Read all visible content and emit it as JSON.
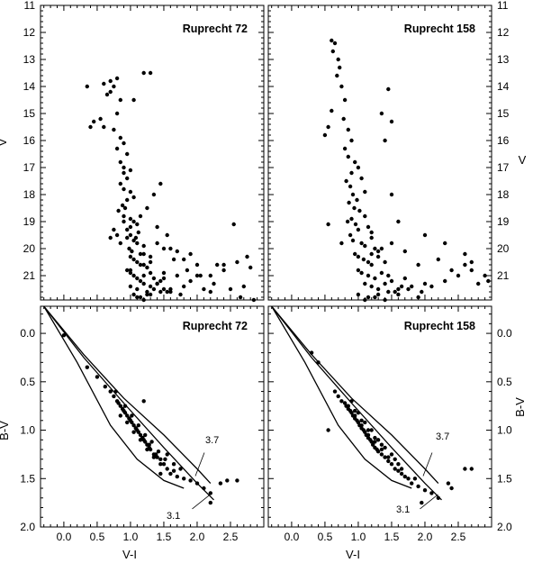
{
  "chart_data": [
    {
      "type": "scatter",
      "title": "Ruprecht 72",
      "xlabel": "",
      "ylabel": "V",
      "xlim": [
        -0.35,
        3.0
      ],
      "ylim": [
        21.9,
        11.0
      ],
      "y_inverted": true,
      "yticks": [
        "11",
        "12",
        "13",
        "14",
        "15",
        "16",
        "17",
        "18",
        "19",
        "20",
        "21"
      ],
      "series": [
        {
          "x": [
            0.35,
            0.4,
            0.45,
            0.6,
            0.65,
            0.7,
            0.75,
            0.7,
            0.8,
            0.85,
            0.8,
            0.75,
            0.85,
            0.9,
            0.8,
            0.95,
            0.85,
            0.9,
            0.9,
            0.95,
            1.0,
            0.85,
            0.9,
            1.0,
            1.05,
            0.95,
            0.88,
            0.92,
            0.82,
            0.9,
            1.0,
            1.05,
            1.0,
            0.95,
            1.1,
            1.15,
            1.0,
            0.95,
            1.05,
            1.1,
            1.2,
            0.98,
            1.02,
            1.08,
            1.12,
            1.0,
            1.05,
            1.1,
            1.15,
            1.2,
            1.25,
            1.3,
            0.95,
            1.0,
            1.05,
            1.1,
            1.15,
            1.2,
            1.3,
            1.35,
            1.4,
            1.0,
            1.1,
            1.2,
            1.25,
            1.3,
            1.45,
            1.5,
            1.6,
            1.05,
            1.15,
            1.25,
            1.35,
            1.4,
            1.5,
            1.55,
            1.7,
            1.8,
            1.1,
            1.2,
            1.3,
            1.45,
            1.6,
            1.75,
            1.9,
            2.0,
            2.1,
            2.2,
            1.0,
            1.15,
            1.3,
            1.5,
            1.65,
            1.85,
            2.05,
            2.25,
            2.4,
            2.6,
            2.8,
            1.2,
            1.4,
            1.6,
            1.8,
            2.0,
            2.2,
            2.4,
            2.7,
            0.8,
            0.85,
            1.25,
            1.35,
            1.45,
            1.55,
            1.7,
            1.9,
            2.3,
            2.5,
            2.65,
            0.75,
            0.7,
            0.9,
            1.4,
            1.5,
            1.2,
            1.3,
            1.05,
            2.55,
            2.75,
            2.85,
            0.6,
            0.55
          ],
          "y": [
            14.0,
            15.5,
            15.3,
            13.9,
            14.3,
            13.8,
            14.0,
            14.2,
            13.7,
            14.5,
            15.0,
            15.6,
            15.9,
            16.1,
            16.3,
            16.5,
            16.8,
            17.0,
            17.2,
            17.4,
            17.1,
            17.6,
            17.8,
            17.9,
            18.1,
            18.2,
            18.4,
            18.5,
            18.6,
            18.8,
            18.9,
            19.0,
            19.2,
            19.3,
            19.1,
            18.8,
            19.5,
            19.6,
            19.7,
            19.8,
            19.9,
            20.0,
            20.1,
            19.6,
            19.4,
            20.3,
            20.4,
            20.5,
            20.2,
            20.6,
            20.7,
            20.3,
            20.8,
            20.9,
            21.0,
            21.1,
            21.2,
            21.0,
            20.9,
            21.1,
            21.3,
            21.4,
            21.5,
            21.3,
            21.6,
            21.4,
            21.2,
            21.5,
            21.6,
            21.7,
            21.8,
            21.7,
            21.5,
            21.3,
            21.1,
            21.6,
            21.0,
            21.4,
            21.8,
            21.9,
            21.7,
            21.6,
            21.5,
            21.7,
            21.2,
            21.0,
            21.5,
            21.6,
            20.8,
            20.6,
            20.5,
            20.9,
            20.4,
            20.8,
            21.0,
            21.3,
            20.6,
            20.5,
            20.7,
            20.2,
            19.8,
            20.0,
            20.4,
            20.6,
            21.0,
            20.8,
            21.4,
            19.5,
            19.8,
            18.5,
            18.0,
            17.6,
            19.5,
            20.1,
            20.2,
            20.6,
            21.5,
            21.8,
            19.3,
            19.6,
            19.0,
            19.2,
            20.0,
            13.5,
            13.5,
            14.5,
            19.1,
            20.3,
            21.9,
            15.5,
            15.2
          ]
        }
      ]
    },
    {
      "type": "scatter",
      "title": "Ruprecht 158",
      "xlabel": "",
      "ylabel": "V",
      "xlim": [
        -0.35,
        3.0
      ],
      "ylim": [
        21.9,
        11.0
      ],
      "y_inverted": true,
      "yticks": [
        "11",
        "12",
        "13",
        "14",
        "15",
        "16",
        "17",
        "18",
        "19",
        "20",
        "21"
      ],
      "series": [
        {
          "x": [
            0.6,
            0.65,
            0.62,
            0.7,
            0.72,
            0.68,
            0.75,
            0.8,
            0.6,
            0.78,
            0.85,
            0.55,
            0.5,
            0.9,
            0.8,
            0.85,
            0.95,
            1.0,
            0.9,
            1.05,
            0.82,
            0.88,
            1.1,
            0.92,
            0.98,
            0.86,
            0.94,
            1.02,
            1.1,
            0.9,
            0.84,
            0.96,
            1.0,
            1.15,
            1.2,
            0.88,
            0.92,
            1.05,
            1.1,
            1.2,
            1.25,
            1.3,
            0.95,
            1.0,
            1.08,
            1.15,
            1.2,
            1.3,
            1.4,
            1.0,
            1.05,
            1.15,
            1.25,
            1.35,
            1.45,
            1.5,
            1.1,
            1.2,
            1.3,
            1.4,
            1.55,
            1.65,
            1.7,
            1.0,
            1.15,
            1.3,
            1.45,
            1.6,
            1.8,
            1.9,
            2.0,
            1.1,
            1.25,
            1.4,
            1.6,
            1.75,
            1.95,
            2.1,
            2.3,
            2.5,
            2.7,
            2.9,
            1.2,
            1.35,
            1.5,
            1.7,
            1.9,
            2.2,
            2.4,
            2.6,
            2.8,
            1.45,
            1.5,
            1.35,
            1.4,
            0.55,
            0.75,
            2.0,
            2.3,
            2.6,
            2.7,
            2.95,
            1.5,
            1.6
          ],
          "y": [
            12.3,
            12.4,
            12.7,
            13.0,
            13.3,
            13.6,
            14.0,
            14.5,
            14.9,
            15.2,
            15.6,
            15.5,
            15.8,
            16.0,
            16.3,
            16.6,
            16.8,
            17.0,
            17.2,
            17.4,
            17.5,
            17.7,
            17.9,
            18.0,
            18.2,
            18.3,
            18.5,
            18.6,
            18.8,
            18.9,
            19.0,
            19.1,
            19.3,
            19.2,
            19.4,
            19.5,
            19.7,
            19.8,
            19.9,
            19.6,
            20.0,
            20.1,
            20.2,
            20.3,
            20.4,
            20.5,
            20.6,
            20.3,
            20.5,
            20.8,
            20.9,
            21.0,
            21.1,
            20.9,
            21.0,
            21.2,
            21.3,
            21.4,
            21.5,
            21.3,
            21.6,
            21.4,
            21.1,
            21.7,
            21.8,
            21.7,
            21.6,
            21.5,
            21.4,
            21.8,
            21.3,
            21.9,
            21.8,
            21.9,
            21.7,
            21.5,
            21.6,
            21.4,
            21.2,
            21.0,
            20.8,
            21.0,
            20.2,
            20.0,
            19.8,
            20.1,
            20.6,
            20.4,
            20.8,
            20.6,
            21.3,
            14.1,
            15.3,
            15.0,
            16.0,
            19.1,
            19.8,
            19.5,
            19.8,
            20.2,
            20.5,
            21.2,
            18.0,
            19.0
          ]
        }
      ]
    },
    {
      "type": "scatter",
      "title": "Ruprecht 72",
      "xlabel": "V-I",
      "ylabel": "B-V",
      "xlim": [
        -0.35,
        3.0
      ],
      "ylim": [
        2.0,
        -0.28
      ],
      "y_inverted": true,
      "xticks": [
        "0.0",
        "0.5",
        "1.0",
        "1.5",
        "2.0",
        "2.5"
      ],
      "yticks": [
        "0.0",
        "0.5",
        "1.0",
        "1.5",
        "2.0"
      ],
      "curves": [
        {
          "name": "3.7",
          "x": [
            -0.3,
            0.3,
            0.9,
            1.5,
            2.0,
            2.2
          ],
          "y": [
            -0.28,
            0.22,
            0.67,
            1.05,
            1.4,
            1.55
          ]
        },
        {
          "name": "3.1",
          "x": [
            -0.3,
            0.3,
            0.9,
            1.5,
            2.0,
            2.25
          ],
          "y": [
            -0.28,
            0.25,
            0.72,
            1.18,
            1.55,
            1.72
          ]
        },
        {
          "name": "",
          "x": [
            -0.3,
            0.2,
            0.7,
            1.1,
            1.5,
            1.8
          ],
          "y": [
            -0.28,
            0.3,
            0.95,
            1.3,
            1.52,
            1.6
          ]
        }
      ],
      "series": [
        {
          "x": [
            0.0,
            0.35,
            0.5,
            0.62,
            0.7,
            0.75,
            0.8,
            0.82,
            0.85,
            0.9,
            0.92,
            0.95,
            0.98,
            1.0,
            1.02,
            1.05,
            1.08,
            1.1,
            1.12,
            1.15,
            1.18,
            1.2,
            1.22,
            1.25,
            1.28,
            1.3,
            1.35,
            1.4,
            1.45,
            1.5,
            1.55,
            1.6,
            1.65,
            1.7,
            1.8,
            1.9,
            2.0,
            2.1,
            2.2,
            2.35,
            2.45,
            2.6,
            0.85,
            0.95,
            1.05,
            1.15,
            1.25,
            1.35,
            1.45,
            0.88,
            0.98,
            1.08,
            1.18,
            1.28,
            1.38,
            0.92,
            1.02,
            1.12,
            1.22,
            1.32,
            1.42,
            1.52,
            0.78,
            1.55,
            1.65,
            1.75,
            2.2,
            1.45,
            1.2
          ],
          "y": [
            0.02,
            0.35,
            0.45,
            0.55,
            0.6,
            0.65,
            0.7,
            0.72,
            0.75,
            0.8,
            0.82,
            0.85,
            0.88,
            0.9,
            0.92,
            0.95,
            0.98,
            1.0,
            1.02,
            1.05,
            1.08,
            1.1,
            1.12,
            1.15,
            1.18,
            1.2,
            1.25,
            1.28,
            1.3,
            1.35,
            1.4,
            1.45,
            1.42,
            1.48,
            1.5,
            1.52,
            1.55,
            1.6,
            1.65,
            1.55,
            1.52,
            1.52,
            0.85,
            0.92,
            1.02,
            1.1,
            1.2,
            1.28,
            1.35,
            0.78,
            0.88,
            0.98,
            1.08,
            1.15,
            1.25,
            0.75,
            0.85,
            0.95,
            1.05,
            1.12,
            1.22,
            1.3,
            0.6,
            1.25,
            1.35,
            1.4,
            1.75,
            1.45,
            0.7
          ]
        }
      ]
    },
    {
      "type": "scatter",
      "title": "Ruprecht 158",
      "xlabel": "V-I",
      "ylabel": "B-V",
      "xlim": [
        -0.35,
        3.0
      ],
      "ylim": [
        2.0,
        -0.28
      ],
      "y_inverted": true,
      "xticks": [
        "0.0",
        "0.5",
        "1.0",
        "1.5",
        "2.0",
        "2.5"
      ],
      "yticks": [
        "0.0",
        "0.5",
        "1.0",
        "1.5",
        "2.0"
      ],
      "curves": [
        {
          "name": "3.7",
          "x": [
            -0.3,
            0.3,
            0.9,
            1.5,
            2.0,
            2.2
          ],
          "y": [
            -0.28,
            0.22,
            0.67,
            1.05,
            1.4,
            1.55
          ]
        },
        {
          "name": "3.1",
          "x": [
            -0.3,
            0.3,
            0.9,
            1.5,
            2.0,
            2.25
          ],
          "y": [
            -0.28,
            0.25,
            0.72,
            1.18,
            1.55,
            1.72
          ]
        },
        {
          "name": "",
          "x": [
            -0.3,
            0.2,
            0.7,
            1.1,
            1.5,
            1.8
          ],
          "y": [
            -0.28,
            0.3,
            0.95,
            1.3,
            1.52,
            1.6
          ]
        }
      ],
      "series": [
        {
          "x": [
            0.55,
            0.7,
            0.75,
            0.8,
            0.82,
            0.85,
            0.88,
            0.9,
            0.92,
            0.95,
            0.98,
            1.0,
            1.02,
            1.05,
            1.08,
            1.1,
            1.12,
            1.15,
            1.18,
            1.2,
            1.22,
            1.25,
            1.28,
            1.3,
            1.35,
            1.4,
            1.45,
            1.5,
            1.55,
            1.6,
            1.65,
            1.7,
            1.75,
            1.8,
            1.9,
            2.0,
            2.1,
            2.2,
            2.4,
            2.6,
            2.7,
            0.85,
            0.95,
            1.05,
            1.15,
            1.25,
            1.35,
            1.45,
            0.9,
            1.0,
            1.1,
            1.2,
            1.3,
            1.4,
            1.5,
            1.6,
            0.95,
            1.05,
            1.15,
            1.25,
            1.35,
            1.55,
            1.65,
            1.85,
            0.3,
            0.4,
            1.95,
            2.35,
            0.65
          ],
          "y": [
            1.0,
            0.65,
            0.7,
            0.72,
            0.75,
            0.78,
            0.8,
            0.82,
            0.85,
            0.88,
            0.9,
            0.92,
            0.95,
            0.98,
            1.0,
            1.02,
            1.05,
            1.08,
            1.1,
            1.12,
            1.15,
            1.18,
            1.2,
            1.22,
            1.25,
            1.28,
            1.32,
            1.35,
            1.4,
            1.42,
            1.45,
            1.48,
            1.5,
            1.55,
            1.58,
            1.62,
            1.65,
            1.7,
            1.6,
            1.4,
            1.4,
            0.75,
            0.85,
            0.95,
            1.05,
            1.12,
            1.2,
            1.28,
            0.7,
            0.82,
            0.92,
            1.0,
            1.1,
            1.18,
            1.25,
            1.35,
            0.8,
            0.9,
            1.0,
            1.08,
            1.15,
            1.3,
            1.4,
            1.5,
            0.2,
            0.3,
            1.75,
            1.55,
            0.6
          ]
        }
      ]
    }
  ]
}
